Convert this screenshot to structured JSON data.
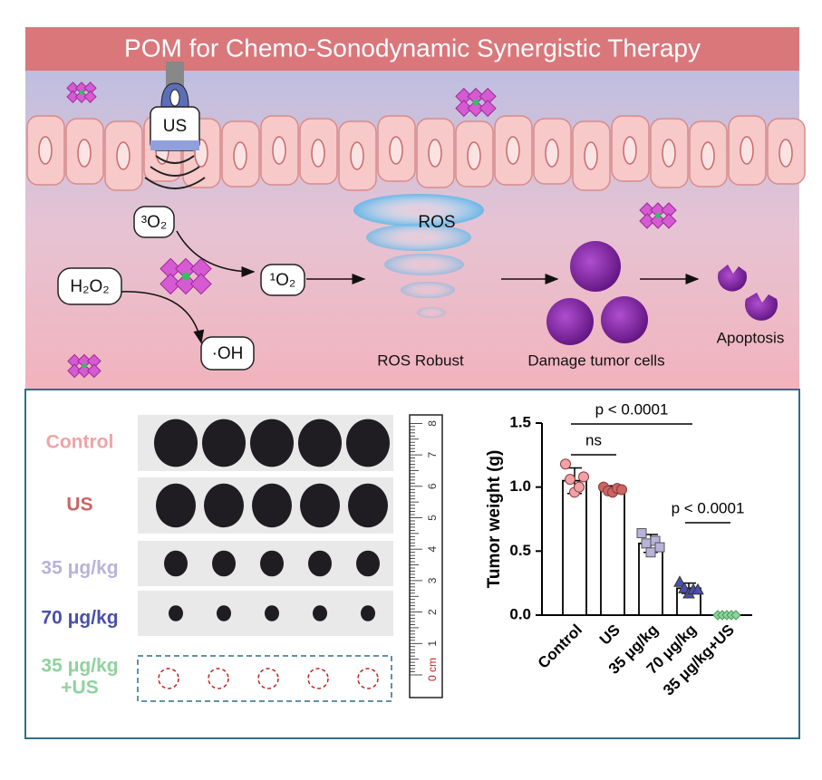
{
  "header": {
    "title": "POM for Chemo-Sonodynamic Synergistic Therapy"
  },
  "mechanism": {
    "us": "US",
    "triplet_oxygen": "³O₂",
    "hydrogen_peroxide": "H₂O₂",
    "singlet_oxygen": "¹O₂",
    "hydroxyl": "·OH",
    "ros": "ROS",
    "ros_robust": "ROS Robust",
    "damage": "Damage tumor cells",
    "apoptosis": "Apoptosis"
  },
  "photo_panel": {
    "groups": [
      [
        "Control"
      ],
      [
        "US"
      ],
      [
        "35 μg/kg"
      ],
      [
        "70 μg/kg"
      ],
      [
        "35 μg/kg",
        "+US"
      ]
    ],
    "ruler": {
      "zero_label": "0 cm",
      "ticks": [
        "1",
        "2",
        "3",
        "4",
        "5",
        "6",
        "7",
        "8"
      ]
    }
  },
  "chart_data": {
    "type": "bar",
    "y_label": "Tumor weight (g)",
    "categories": [
      "Control",
      "US",
      "35 μg/kg",
      "70 μg/kg",
      "35 μg/kg+US"
    ],
    "values": [
      1.05,
      0.98,
      0.56,
      0.21,
      0.0
    ],
    "errors": [
      0.1,
      0.03,
      0.07,
      0.04,
      0.0
    ],
    "points": [
      [
        1.18,
        1.06,
        0.96,
        1.0,
        1.08
      ],
      [
        1.0,
        0.97,
        0.96,
        0.99,
        0.98
      ],
      [
        0.64,
        0.56,
        0.49,
        0.58,
        0.53
      ],
      [
        0.26,
        0.21,
        0.17,
        0.2,
        0.2
      ],
      [
        0.0,
        0.0,
        0.0,
        0.0,
        0.0
      ]
    ],
    "colors": [
      "#f0a3a6",
      "#c96563",
      "#b8b3da",
      "#4a4fae",
      "#8fd29d"
    ],
    "ylim": [
      0,
      1.5
    ],
    "yticks": [
      {
        "value": 0,
        "label": "0.0"
      },
      0.5,
      {
        "value": 1,
        "label": "1.0"
      },
      1.5
    ],
    "annotations": [
      "p < 0.0001",
      "ns",
      "p < 0.0001"
    ]
  }
}
